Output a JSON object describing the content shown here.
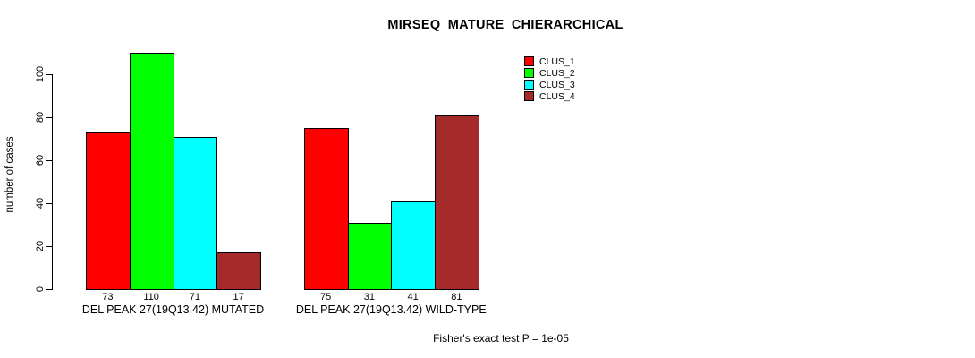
{
  "chart_data": {
    "type": "bar",
    "title": "MIRSEQ_MATURE_CHIERARCHICAL",
    "ylabel": "number of cases",
    "ylim": [
      0,
      110
    ],
    "yticks": [
      0,
      20,
      40,
      60,
      80,
      100
    ],
    "grid": false,
    "legend_position": "top-right",
    "series": [
      "CLUS_1",
      "CLUS_2",
      "CLUS_3",
      "CLUS_4"
    ],
    "series_colors": [
      "#ff0000",
      "#00ff00",
      "#00ffff",
      "#a52a2a"
    ],
    "groups": [
      {
        "label": "DEL PEAK 27(19Q13.42) MUTATED",
        "values": [
          73,
          110,
          71,
          17
        ]
      },
      {
        "label": "DEL PEAK 27(19Q13.42) WILD-TYPE",
        "values": [
          75,
          31,
          41,
          81
        ]
      }
    ],
    "annotation": "Fisher's exact test P = 1e-05"
  }
}
